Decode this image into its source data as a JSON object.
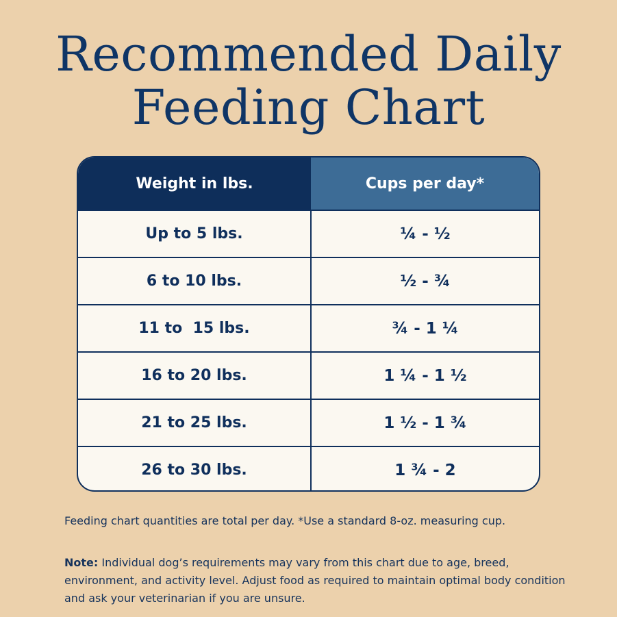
{
  "title": {
    "line1": "Recommended Daily",
    "line2": "Feeding Chart"
  },
  "table": {
    "headers": [
      "Weight in lbs.",
      "Cups per day*"
    ],
    "rows": [
      [
        "Up to 5 lbs.",
        "¼ - ½"
      ],
      [
        "6 to 10 lbs.",
        "½ - ¾"
      ],
      [
        "11 to  15 lbs.",
        "¾ - 1 ¼"
      ],
      [
        "16 to 20 lbs.",
        "1 ¼ - 1 ½"
      ],
      [
        "21 to 25 lbs.",
        "1 ½ - 1 ¾"
      ],
      [
        "26 to 30 lbs.",
        "1 ¾ - 2"
      ]
    ]
  },
  "footnote": "Feeding chart quantities are total per day. *Use a standard 8-oz. measuring cup.",
  "note": {
    "label": "Note:",
    "text": " Individual dog’s requirements may vary from this chart due to age, breed, environment, and activity level. Adjust food as required to maintain optimal body condition and ask your veterinarian if you are unsure."
  },
  "colors": {
    "navy": "#0e2e5a",
    "header_blue": "#3d6c96",
    "cell_background": "#fbf8f1",
    "background": "#ecd1ac"
  }
}
